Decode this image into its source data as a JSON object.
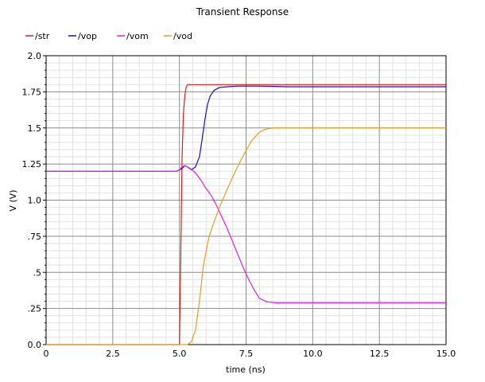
{
  "chart_data": {
    "type": "line",
    "title": "Transient Response",
    "xlabel": "time (ns)",
    "ylabel": "V (V)",
    "xlim": [
      0,
      15
    ],
    "ylim": [
      0,
      2.0
    ],
    "grid": true,
    "legend_position": "top-left",
    "x_ticks": [
      "0",
      "2.5",
      "5.0",
      "7.5",
      "10.0",
      "12.5",
      "15.0"
    ],
    "y_ticks": [
      "0.0",
      ".25",
      ".5",
      ".75",
      "1.0",
      "1.25",
      "1.5",
      "1.75",
      "2.0"
    ],
    "series": [
      {
        "name": "/str",
        "color": "#d42020",
        "x": [
          0,
          5.0,
          5.05,
          5.1,
          5.15,
          5.2,
          5.25,
          5.3,
          15
        ],
        "y": [
          0,
          0,
          0.6,
          1.3,
          1.6,
          1.72,
          1.78,
          1.8,
          1.8
        ]
      },
      {
        "name": "/vop",
        "color": "#1010c8",
        "x": [
          0,
          4.9,
          5.0,
          5.1,
          5.2,
          5.3,
          5.45,
          5.6,
          5.75,
          5.85,
          5.95,
          6.05,
          6.15,
          6.3,
          6.5,
          6.8,
          7.2,
          7.6,
          8.0,
          9.0,
          15
        ],
        "y": [
          1.2,
          1.2,
          1.21,
          1.22,
          1.24,
          1.23,
          1.21,
          1.23,
          1.3,
          1.42,
          1.55,
          1.66,
          1.72,
          1.76,
          1.78,
          1.785,
          1.79,
          1.79,
          1.79,
          1.785,
          1.785
        ]
      },
      {
        "name": "/vom",
        "color": "#e020e0",
        "x": [
          0,
          4.9,
          5.0,
          5.1,
          5.2,
          5.4,
          5.6,
          5.8,
          6.0,
          6.2,
          6.4,
          6.6,
          6.8,
          7.0,
          7.2,
          7.4,
          7.6,
          7.8,
          8.0,
          8.3,
          8.6,
          9.0,
          15
        ],
        "y": [
          1.2,
          1.2,
          1.21,
          1.23,
          1.24,
          1.22,
          1.19,
          1.14,
          1.08,
          1.03,
          0.96,
          0.88,
          0.8,
          0.71,
          0.62,
          0.53,
          0.45,
          0.38,
          0.32,
          0.295,
          0.29,
          0.29,
          0.29
        ]
      },
      {
        "name": "/vod",
        "color": "#e0a020",
        "x": [
          0,
          5.0,
          5.05,
          5.1,
          5.15,
          5.2,
          5.3,
          5.45,
          5.6,
          5.75,
          5.9,
          6.1,
          6.3,
          6.5,
          6.8,
          7.1,
          7.4,
          7.7,
          8.0,
          8.2,
          8.5,
          9.0,
          15
        ],
        "y": [
          0,
          0,
          0,
          0,
          0,
          0,
          0,
          0.02,
          0.1,
          0.3,
          0.55,
          0.74,
          0.85,
          0.95,
          1.08,
          1.2,
          1.31,
          1.41,
          1.47,
          1.49,
          1.5,
          1.5,
          1.5
        ]
      }
    ]
  }
}
